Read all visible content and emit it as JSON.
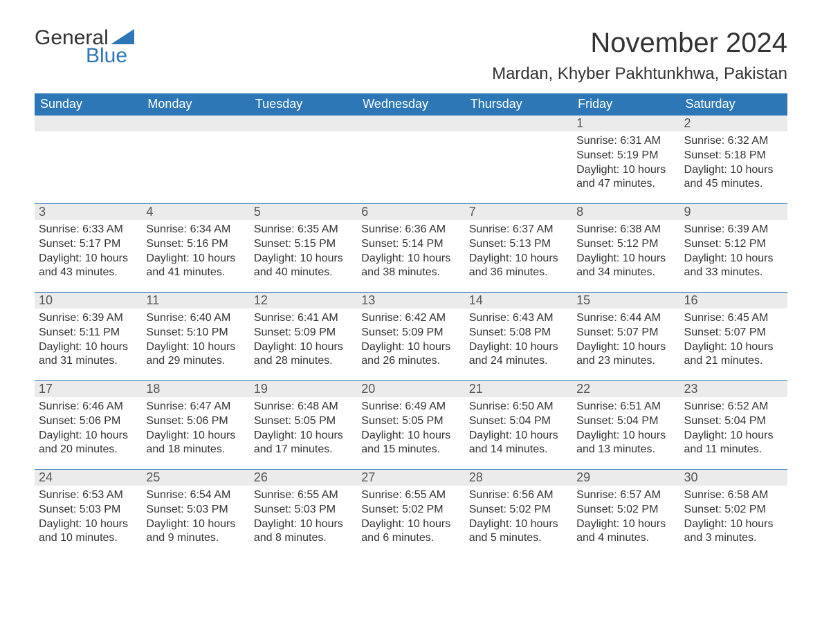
{
  "logo": {
    "word1": "General",
    "word2": "Blue"
  },
  "title": "November 2024",
  "location": "Mardan, Khyber Pakhtunkhwa, Pakistan",
  "colors": {
    "header_bg": "#2d77b6",
    "header_text": "#ffffff",
    "date_bar_bg": "#ebebeb",
    "date_bar_border": "#2d77b6",
    "body_text": "#333333",
    "logo_blue": "#2d77b6"
  },
  "days_of_week": [
    "Sunday",
    "Monday",
    "Tuesday",
    "Wednesday",
    "Thursday",
    "Friday",
    "Saturday"
  ],
  "weeks": [
    [
      {
        "date": "",
        "sunrise": "",
        "sunset": "",
        "daylight": ""
      },
      {
        "date": "",
        "sunrise": "",
        "sunset": "",
        "daylight": ""
      },
      {
        "date": "",
        "sunrise": "",
        "sunset": "",
        "daylight": ""
      },
      {
        "date": "",
        "sunrise": "",
        "sunset": "",
        "daylight": ""
      },
      {
        "date": "",
        "sunrise": "",
        "sunset": "",
        "daylight": ""
      },
      {
        "date": "1",
        "sunrise": "Sunrise: 6:31 AM",
        "sunset": "Sunset: 5:19 PM",
        "daylight": "Daylight: 10 hours and 47 minutes."
      },
      {
        "date": "2",
        "sunrise": "Sunrise: 6:32 AM",
        "sunset": "Sunset: 5:18 PM",
        "daylight": "Daylight: 10 hours and 45 minutes."
      }
    ],
    [
      {
        "date": "3",
        "sunrise": "Sunrise: 6:33 AM",
        "sunset": "Sunset: 5:17 PM",
        "daylight": "Daylight: 10 hours and 43 minutes."
      },
      {
        "date": "4",
        "sunrise": "Sunrise: 6:34 AM",
        "sunset": "Sunset: 5:16 PM",
        "daylight": "Daylight: 10 hours and 41 minutes."
      },
      {
        "date": "5",
        "sunrise": "Sunrise: 6:35 AM",
        "sunset": "Sunset: 5:15 PM",
        "daylight": "Daylight: 10 hours and 40 minutes."
      },
      {
        "date": "6",
        "sunrise": "Sunrise: 6:36 AM",
        "sunset": "Sunset: 5:14 PM",
        "daylight": "Daylight: 10 hours and 38 minutes."
      },
      {
        "date": "7",
        "sunrise": "Sunrise: 6:37 AM",
        "sunset": "Sunset: 5:13 PM",
        "daylight": "Daylight: 10 hours and 36 minutes."
      },
      {
        "date": "8",
        "sunrise": "Sunrise: 6:38 AM",
        "sunset": "Sunset: 5:12 PM",
        "daylight": "Daylight: 10 hours and 34 minutes."
      },
      {
        "date": "9",
        "sunrise": "Sunrise: 6:39 AM",
        "sunset": "Sunset: 5:12 PM",
        "daylight": "Daylight: 10 hours and 33 minutes."
      }
    ],
    [
      {
        "date": "10",
        "sunrise": "Sunrise: 6:39 AM",
        "sunset": "Sunset: 5:11 PM",
        "daylight": "Daylight: 10 hours and 31 minutes."
      },
      {
        "date": "11",
        "sunrise": "Sunrise: 6:40 AM",
        "sunset": "Sunset: 5:10 PM",
        "daylight": "Daylight: 10 hours and 29 minutes."
      },
      {
        "date": "12",
        "sunrise": "Sunrise: 6:41 AM",
        "sunset": "Sunset: 5:09 PM",
        "daylight": "Daylight: 10 hours and 28 minutes."
      },
      {
        "date": "13",
        "sunrise": "Sunrise: 6:42 AM",
        "sunset": "Sunset: 5:09 PM",
        "daylight": "Daylight: 10 hours and 26 minutes."
      },
      {
        "date": "14",
        "sunrise": "Sunrise: 6:43 AM",
        "sunset": "Sunset: 5:08 PM",
        "daylight": "Daylight: 10 hours and 24 minutes."
      },
      {
        "date": "15",
        "sunrise": "Sunrise: 6:44 AM",
        "sunset": "Sunset: 5:07 PM",
        "daylight": "Daylight: 10 hours and 23 minutes."
      },
      {
        "date": "16",
        "sunrise": "Sunrise: 6:45 AM",
        "sunset": "Sunset: 5:07 PM",
        "daylight": "Daylight: 10 hours and 21 minutes."
      }
    ],
    [
      {
        "date": "17",
        "sunrise": "Sunrise: 6:46 AM",
        "sunset": "Sunset: 5:06 PM",
        "daylight": "Daylight: 10 hours and 20 minutes."
      },
      {
        "date": "18",
        "sunrise": "Sunrise: 6:47 AM",
        "sunset": "Sunset: 5:06 PM",
        "daylight": "Daylight: 10 hours and 18 minutes."
      },
      {
        "date": "19",
        "sunrise": "Sunrise: 6:48 AM",
        "sunset": "Sunset: 5:05 PM",
        "daylight": "Daylight: 10 hours and 17 minutes."
      },
      {
        "date": "20",
        "sunrise": "Sunrise: 6:49 AM",
        "sunset": "Sunset: 5:05 PM",
        "daylight": "Daylight: 10 hours and 15 minutes."
      },
      {
        "date": "21",
        "sunrise": "Sunrise: 6:50 AM",
        "sunset": "Sunset: 5:04 PM",
        "daylight": "Daylight: 10 hours and 14 minutes."
      },
      {
        "date": "22",
        "sunrise": "Sunrise: 6:51 AM",
        "sunset": "Sunset: 5:04 PM",
        "daylight": "Daylight: 10 hours and 13 minutes."
      },
      {
        "date": "23",
        "sunrise": "Sunrise: 6:52 AM",
        "sunset": "Sunset: 5:04 PM",
        "daylight": "Daylight: 10 hours and 11 minutes."
      }
    ],
    [
      {
        "date": "24",
        "sunrise": "Sunrise: 6:53 AM",
        "sunset": "Sunset: 5:03 PM",
        "daylight": "Daylight: 10 hours and 10 minutes."
      },
      {
        "date": "25",
        "sunrise": "Sunrise: 6:54 AM",
        "sunset": "Sunset: 5:03 PM",
        "daylight": "Daylight: 10 hours and 9 minutes."
      },
      {
        "date": "26",
        "sunrise": "Sunrise: 6:55 AM",
        "sunset": "Sunset: 5:03 PM",
        "daylight": "Daylight: 10 hours and 8 minutes."
      },
      {
        "date": "27",
        "sunrise": "Sunrise: 6:55 AM",
        "sunset": "Sunset: 5:02 PM",
        "daylight": "Daylight: 10 hours and 6 minutes."
      },
      {
        "date": "28",
        "sunrise": "Sunrise: 6:56 AM",
        "sunset": "Sunset: 5:02 PM",
        "daylight": "Daylight: 10 hours and 5 minutes."
      },
      {
        "date": "29",
        "sunrise": "Sunrise: 6:57 AM",
        "sunset": "Sunset: 5:02 PM",
        "daylight": "Daylight: 10 hours and 4 minutes."
      },
      {
        "date": "30",
        "sunrise": "Sunrise: 6:58 AM",
        "sunset": "Sunset: 5:02 PM",
        "daylight": "Daylight: 10 hours and 3 minutes."
      }
    ]
  ]
}
